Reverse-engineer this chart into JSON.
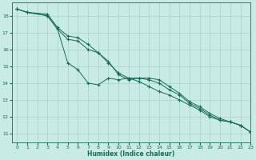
{
  "xlabel": "Humidex (Indice chaleur)",
  "background_color": "#c8ebe3",
  "grid_color": "#a8d5cc",
  "line_color": "#1a6b5a",
  "xlim": [
    -0.5,
    23
  ],
  "ylim": [
    10.5,
    18.8
  ],
  "x_ticks": [
    0,
    1,
    2,
    3,
    4,
    5,
    6,
    7,
    8,
    9,
    10,
    11,
    12,
    13,
    14,
    15,
    16,
    17,
    18,
    19,
    20,
    21,
    22,
    23
  ],
  "y_ticks": [
    11,
    12,
    13,
    14,
    15,
    16,
    17,
    18
  ],
  "series": [
    {
      "x": [
        0,
        1,
        3,
        4,
        5,
        6,
        7,
        8,
        9,
        10,
        11,
        12,
        13,
        14,
        15,
        16,
        17,
        18,
        19,
        20,
        21,
        22,
        23
      ],
      "y": [
        18.4,
        18.2,
        18.0,
        17.2,
        15.2,
        14.8,
        14.0,
        13.9,
        14.3,
        14.2,
        14.3,
        14.1,
        13.8,
        13.5,
        13.3,
        13.0,
        12.7,
        12.4,
        12.0,
        11.8,
        11.7,
        11.5,
        11.1
      ]
    },
    {
      "x": [
        0,
        1,
        3,
        4,
        5,
        6,
        7,
        8,
        9,
        10,
        11,
        12,
        13,
        14,
        15,
        16,
        17,
        18,
        19,
        20,
        21,
        22,
        23
      ],
      "y": [
        18.4,
        18.2,
        18.0,
        17.2,
        16.6,
        16.5,
        16.0,
        15.8,
        15.3,
        14.5,
        14.2,
        14.3,
        14.2,
        14.0,
        13.6,
        13.3,
        12.8,
        12.5,
        12.1,
        11.8,
        11.7,
        11.5,
        11.1
      ]
    },
    {
      "x": [
        0,
        1,
        3,
        4,
        5,
        6,
        7,
        8,
        9,
        10,
        11,
        12,
        13,
        14,
        15,
        16,
        17,
        18,
        19,
        20,
        21,
        22,
        23
      ],
      "y": [
        18.4,
        18.2,
        18.1,
        17.3,
        16.8,
        16.7,
        16.3,
        15.8,
        15.2,
        14.6,
        14.3,
        14.3,
        14.3,
        14.2,
        13.8,
        13.4,
        12.9,
        12.6,
        12.2,
        11.9,
        11.7,
        11.5,
        11.1
      ]
    }
  ]
}
